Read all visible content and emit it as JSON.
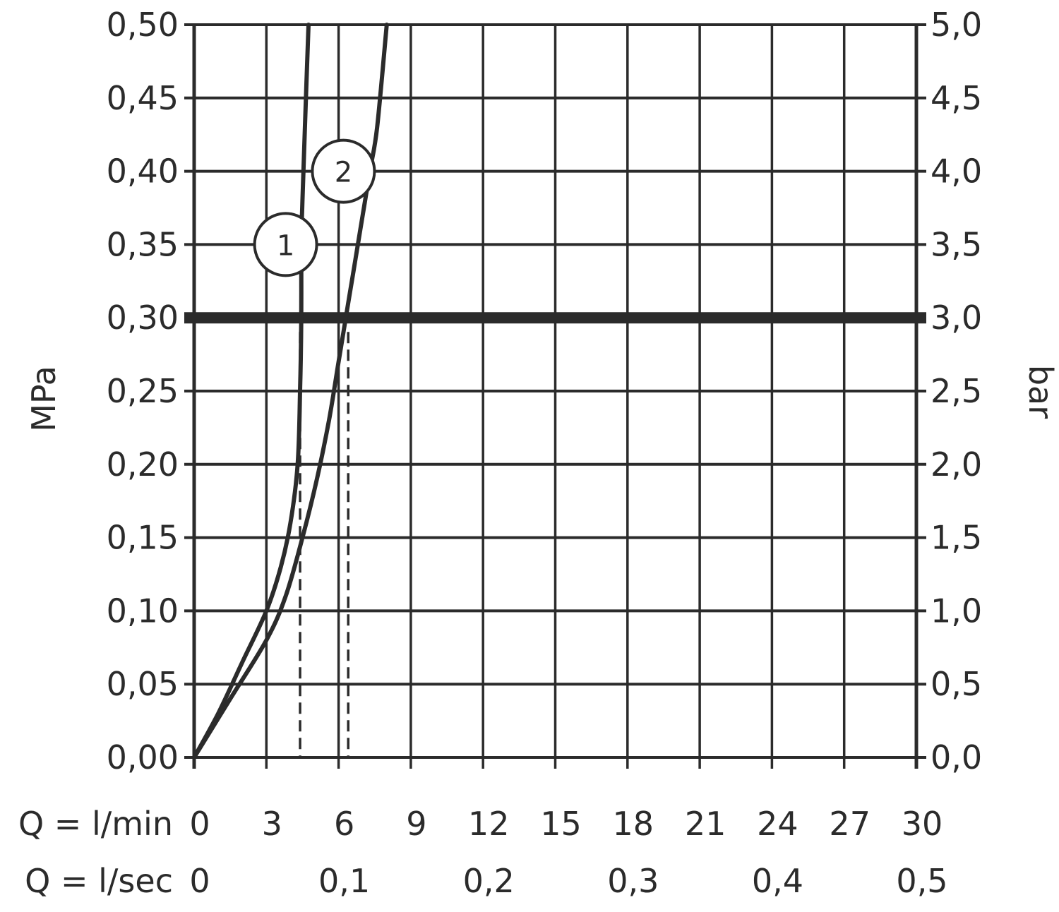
{
  "chart_data": {
    "type": "line",
    "title": "",
    "y_left": {
      "label": "MPa",
      "ylim": [
        0,
        0.5
      ],
      "ticks": [
        "0,00",
        "0,05",
        "0,10",
        "0,15",
        "0,20",
        "0,25",
        "0,30",
        "0,35",
        "0,40",
        "0,45",
        "0,50"
      ]
    },
    "y_right": {
      "label": "bar",
      "ticks": [
        "0,0",
        "0,5",
        "1,0",
        "1,5",
        "2,0",
        "2,5",
        "3,0",
        "3,5",
        "4,0",
        "4,5",
        "5,0"
      ]
    },
    "x_min": {
      "label": "Q = l/min",
      "xlim": [
        0,
        30
      ],
      "ticks": [
        "0",
        "3",
        "6",
        "9",
        "12",
        "15",
        "18",
        "21",
        "24",
        "27",
        "30"
      ]
    },
    "x_sec": {
      "label": "Q = l/sec",
      "ticks": [
        "0",
        "0,1",
        "0,2",
        "0,3",
        "0,4",
        "0,5"
      ]
    },
    "grid": true,
    "reference_line": {
      "y": 0.3
    },
    "series": [
      {
        "label": "1",
        "x": [
          0,
          1,
          2,
          3,
          3.6,
          4.0,
          4.3,
          4.4,
          4.45,
          4.45,
          4.5,
          4.6,
          4.75
        ],
        "y": [
          0,
          0.03,
          0.065,
          0.1,
          0.13,
          0.16,
          0.2,
          0.25,
          0.3,
          0.35,
          0.38,
          0.43,
          0.5
        ]
      },
      {
        "label": "2",
        "x": [
          0,
          1.5,
          3,
          3.8,
          4.5,
          5.1,
          5.6,
          6.0,
          6.3,
          6.6,
          6.9,
          7.3,
          7.6,
          8.0
        ],
        "y": [
          0,
          0.04,
          0.08,
          0.11,
          0.15,
          0.19,
          0.23,
          0.27,
          0.3,
          0.33,
          0.36,
          0.4,
          0.43,
          0.5
        ]
      }
    ],
    "markers": [
      {
        "series": "1",
        "x": 4.4,
        "y": 0.3
      },
      {
        "series": "2",
        "x": 6.4,
        "y": 0.3
      }
    ]
  }
}
